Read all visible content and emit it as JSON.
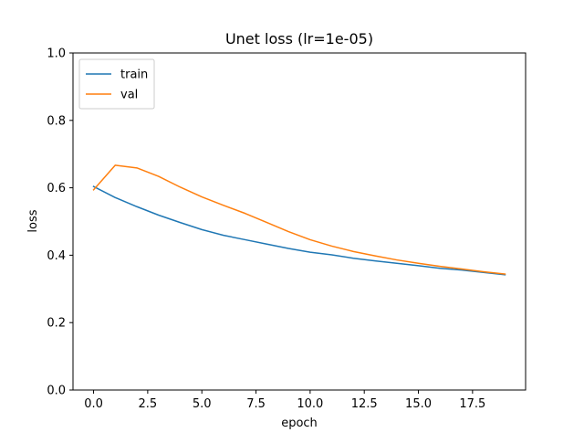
{
  "chart_data": {
    "type": "line",
    "title": "Unet loss (lr=1e-05)",
    "xlabel": "epoch",
    "ylabel": "loss",
    "xlim": [
      -0.95,
      19.95
    ],
    "ylim": [
      0.0,
      1.0
    ],
    "xticks": [
      0.0,
      2.5,
      5.0,
      7.5,
      10.0,
      12.5,
      15.0,
      17.5
    ],
    "xtick_labels": [
      "0.0",
      "2.5",
      "5.0",
      "7.5",
      "10.0",
      "12.5",
      "15.0",
      "17.5"
    ],
    "yticks": [
      0.0,
      0.2,
      0.4,
      0.6,
      0.8,
      1.0
    ],
    "ytick_labels": [
      "0.0",
      "0.2",
      "0.4",
      "0.6",
      "0.8",
      "1.0"
    ],
    "grid": false,
    "legend_position": "top-left",
    "x": [
      0,
      1,
      2,
      3,
      4,
      5,
      6,
      7,
      8,
      9,
      10,
      11,
      12,
      13,
      14,
      15,
      16,
      17,
      18,
      19
    ],
    "series": [
      {
        "name": "train",
        "color": "#1f77b4",
        "values": [
          0.604,
          0.571,
          0.544,
          0.519,
          0.497,
          0.476,
          0.459,
          0.446,
          0.433,
          0.42,
          0.409,
          0.401,
          0.391,
          0.383,
          0.376,
          0.369,
          0.361,
          0.356,
          0.349,
          0.342
        ]
      },
      {
        "name": "val",
        "color": "#ff7f0e",
        "values": [
          0.594,
          0.667,
          0.659,
          0.634,
          0.602,
          0.573,
          0.548,
          0.524,
          0.497,
          0.47,
          0.446,
          0.427,
          0.411,
          0.398,
          0.386,
          0.376,
          0.367,
          0.359,
          0.351,
          0.344
        ]
      }
    ]
  }
}
